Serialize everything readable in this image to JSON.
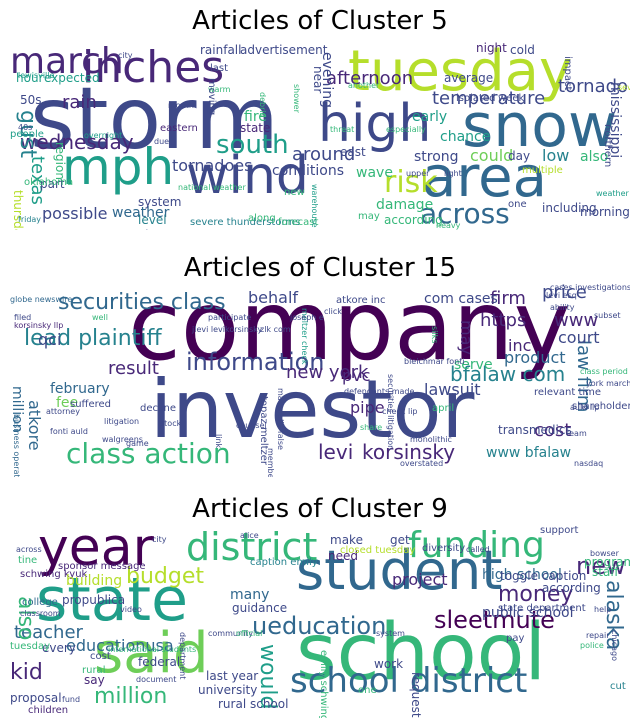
{
  "palette": [
    "#440154",
    "#482878",
    "#3e4989",
    "#31688e",
    "#26828e",
    "#1f9e89",
    "#35b779",
    "#6ece58",
    "#b5de2b",
    "#d3e22a"
  ],
  "panels": [
    {
      "title": "Articles of Cluster 5",
      "words": [
        "storm",
        "tuesday",
        "inches",
        "snow",
        "high",
        "wind",
        "area",
        "mph",
        "march",
        "south",
        "risk",
        "across",
        "wednesday",
        "tornado",
        "afternoon",
        "gust",
        "texas",
        "temperature",
        "around",
        "rain",
        "strong",
        "tornadoes",
        "could",
        "day",
        "low",
        "also",
        "evening",
        "fire",
        "conditions",
        "possible",
        "weather",
        "damage",
        "including",
        "mississippi",
        "severe thunderstorms",
        "rainfall",
        "advertisement",
        "night",
        "cold",
        "expected",
        "hour",
        "50s",
        "early",
        "chance",
        "isolated",
        "week",
        "average",
        "state",
        "east",
        "wave",
        "near",
        "thursday",
        "system",
        "part",
        "region",
        "level",
        "line",
        "cbs",
        "forecast",
        "oklahoma",
        "people",
        "lewisville",
        "city",
        "last",
        "month",
        "eastern",
        "due",
        "warm",
        "debris",
        "along",
        "moving",
        "national weather",
        "morning",
        "according",
        "may",
        "one",
        "multiple",
        "friday",
        "heavy",
        "new",
        "warehouse",
        "shower",
        "threat",
        "especially",
        "northern",
        "another",
        "impact",
        "40s",
        "overnight",
        "upper",
        "light",
        "weather service",
        "severe",
        "free",
        "snowstorm",
        "late"
      ]
    },
    {
      "title": "Articles of Cluster 15",
      "words": [
        "company",
        "investor",
        "class action",
        "securities class",
        "lead plaintiff",
        "information",
        "levi",
        "korsinsky",
        "bfalaw com",
        "new york",
        "law firm",
        "firm",
        "https",
        "www",
        "inc",
        "price",
        "court",
        "product",
        "may",
        "result",
        "fee",
        "february",
        "million",
        "atkore",
        "qci",
        "pipe",
        "pvc",
        "lawsuit",
        "cost",
        "www bfalaw",
        "behalf",
        "serve",
        "com cases",
        "atkore inc",
        "globe newswire",
        "filed",
        "korsinsky llp",
        "well",
        "suffered",
        "decline",
        "litigation",
        "business operations",
        "walgreens",
        "game",
        "stock",
        "participate",
        "jlevi levikorsinsky",
        "securities litigation",
        "topaz meltzer",
        "materially false",
        "meltzer check",
        "defendants made",
        "check lip",
        "april",
        "shareholder",
        "relevant time",
        "york march",
        "class period",
        "transmedics",
        "cases investigations",
        "ability",
        "subset",
        "levi esq",
        "nasdaq",
        "overstated",
        "monolithic",
        "share",
        "attorney",
        "counsel",
        "click",
        "member",
        "bleichmar fonti",
        "silks",
        "joseph e",
        "fonti auld",
        "zlk com",
        "auld llp",
        "team",
        "link",
        "york",
        "e levi"
      ]
    },
    {
      "title": "Articles of Cluster 9",
      "words": [
        "school",
        "student",
        "state",
        "year",
        "said",
        "district",
        "funding",
        "school district",
        "ueducation",
        "sleetmute",
        "budget",
        "money",
        "new",
        "alaska",
        "million",
        "teacher",
        "kid",
        "also",
        "would",
        "project",
        "educationusa",
        "high school",
        "public school",
        "toggle caption",
        "schwing kyuk",
        "sponsor message",
        "caption emily",
        "propublica",
        "building",
        "many",
        "need",
        "make",
        "get",
        "diversity",
        "closed tuesday",
        "guidance",
        "university",
        "rural school",
        "federal",
        "last year",
        "program",
        "staff",
        "according",
        "state department",
        "pay",
        "request",
        "across",
        "tine",
        "city",
        "alice",
        "support",
        "bowser",
        "repair",
        "police",
        "called",
        "help",
        "classroom",
        "college",
        "video",
        "community",
        "official",
        "system",
        "work",
        "cost",
        "document",
        "proposal",
        "children",
        "fund",
        "rural",
        "every",
        "international students",
        "emily schwing",
        "department",
        "chicago",
        "cut",
        "tuesday",
        "one",
        "say"
      ]
    }
  ]
}
